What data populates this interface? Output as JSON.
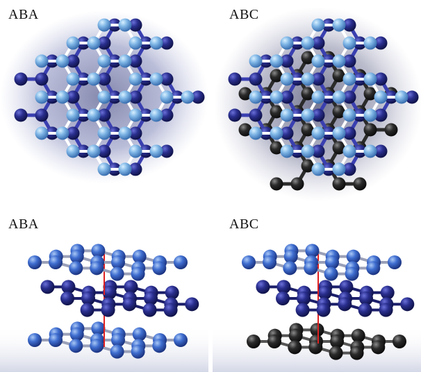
{
  "panels": {
    "top_left": {
      "label": "ABA"
    },
    "top_right": {
      "label": "ABC"
    },
    "bottom_left": {
      "label": "ABA"
    },
    "bottom_right": {
      "label": "ABC"
    }
  },
  "colors": {
    "layer_light": "#7fb6e6",
    "layer_dark": "#2a2f8f",
    "layer_black": "#2b2b2b",
    "bond_white": "#ffffff",
    "bond_dark": "#3a3fb0",
    "interlayer_line": "#e02020"
  }
}
